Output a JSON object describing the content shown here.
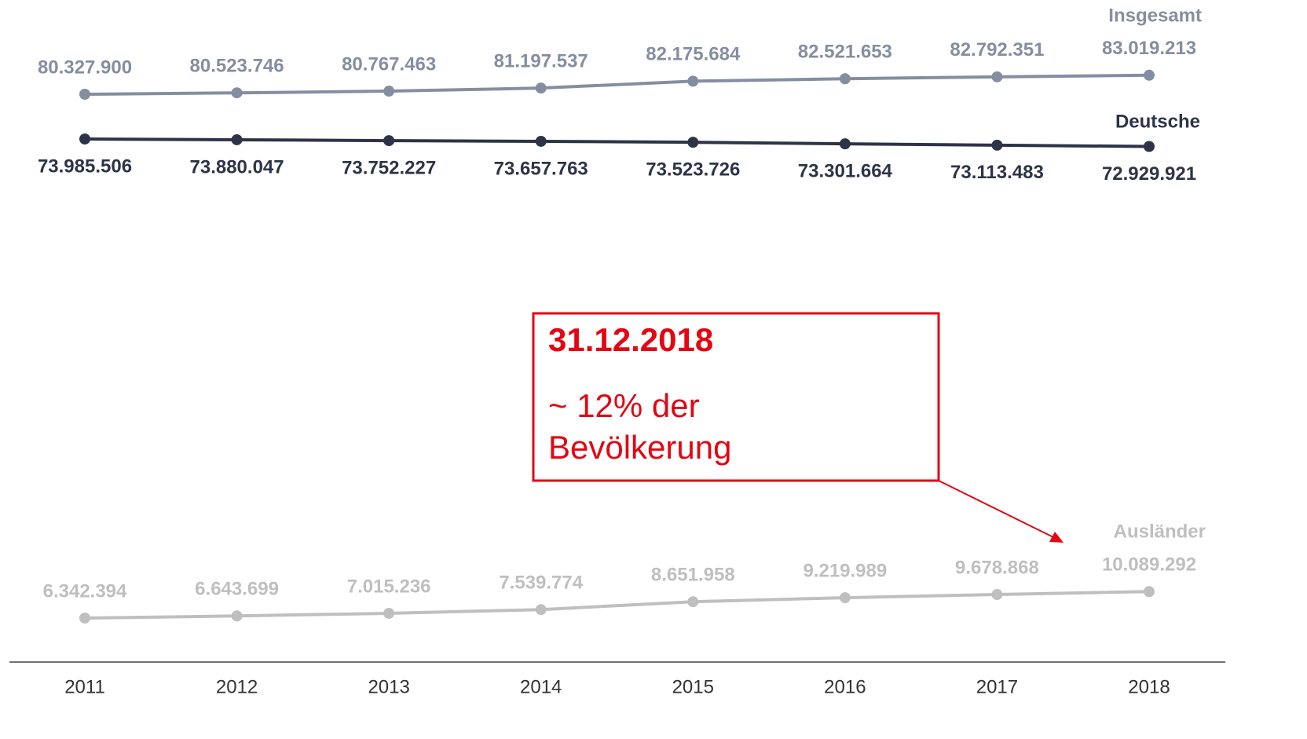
{
  "chart_data": {
    "type": "line",
    "categories": [
      "2011",
      "2012",
      "2013",
      "2014",
      "2015",
      "2016",
      "2017",
      "2018"
    ],
    "series": [
      {
        "name": "Insgesamt",
        "color": "#858ea0",
        "values": [
          80327900,
          80523746,
          80767463,
          81197537,
          82175684,
          82521653,
          82792351,
          83019213
        ],
        "value_labels": [
          "80.327.900",
          "80.523.746",
          "80.767.463",
          "81.197.537",
          "82.175.684",
          "82.521.653",
          "82.792.351",
          "83.019.213"
        ]
      },
      {
        "name": "Deutsche",
        "color": "#2d3447",
        "values": [
          73985506,
          73880047,
          73752227,
          73657763,
          73523726,
          73301664,
          73113483,
          72929921
        ],
        "value_labels": [
          "73.985.506",
          "73.880.047",
          "73.752.227",
          "73.657.763",
          "73.523.726",
          "73.301.664",
          "73.113.483",
          "72.929.921"
        ]
      },
      {
        "name": "Ausländer",
        "color": "#bfbfbf",
        "values": [
          6342394,
          6643699,
          7015236,
          7539774,
          8651958,
          9219989,
          9678868,
          10089292
        ],
        "value_labels": [
          "6.342.394",
          "6.643.699",
          "7.015.236",
          "7.539.774",
          "8.651.958",
          "9.219.989",
          "9.678.868",
          "10.089.292"
        ]
      }
    ],
    "annotation": {
      "title": "31.12.2018",
      "lines": [
        "~ 12% der",
        "Bevölkerung"
      ],
      "color": "#e30613"
    }
  }
}
